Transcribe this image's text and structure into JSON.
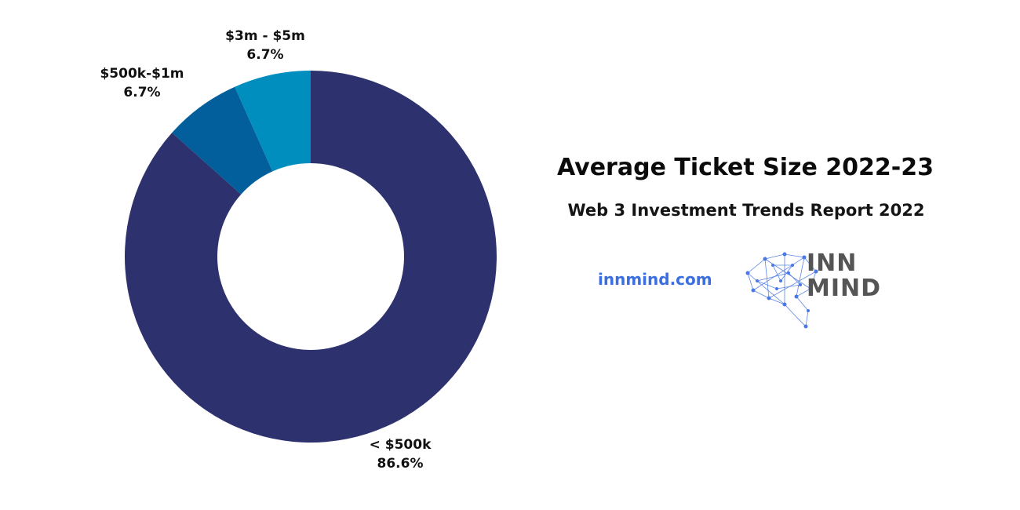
{
  "chart_data": {
    "type": "pie",
    "donut": true,
    "categories": [
      "< $500k",
      "$500k-$1m",
      "$3m - $5m"
    ],
    "values": [
      86.6,
      6.7,
      6.7
    ],
    "labels": [
      "86.6%",
      "6.7%",
      "6.7%"
    ],
    "colors": [
      "#2d316d",
      "#025f9b",
      "#008ebf"
    ],
    "title": "Average Ticket Size 2022-23",
    "subtitle": "Web 3 Investment Trends Report 2022",
    "legend": "none"
  },
  "branding": {
    "site": "innmind.com",
    "logo_line1": "INN",
    "logo_line2": "MIND",
    "logo_icon": "network-brain-icon",
    "link_color": "#3b6fe0",
    "logo_color": "#555555"
  }
}
